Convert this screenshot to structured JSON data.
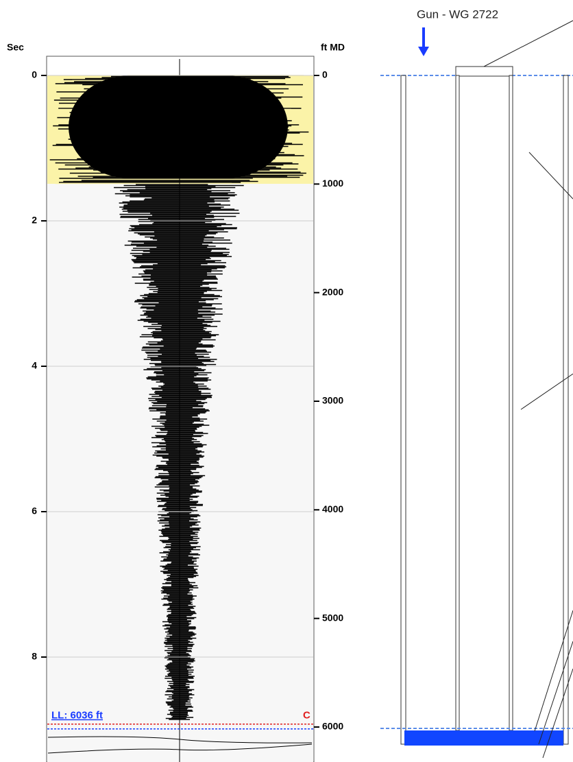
{
  "log_panel": {
    "time_axis": {
      "label": "Sec",
      "lim": [
        0,
        9.4
      ],
      "ticks": [
        0,
        2,
        4,
        6,
        8
      ]
    },
    "depth_axis": {
      "label": "ft MD",
      "lim": [
        0,
        6300
      ],
      "ticks": [
        0,
        1000,
        2000,
        3000,
        4000,
        5000,
        6000
      ]
    },
    "liquid_level": {
      "label": "LL: 6036 ft",
      "depth": 6036
    },
    "collar_marker": "C"
  },
  "wellbore": {
    "gun_label": "Gun - WG 2722"
  }
}
